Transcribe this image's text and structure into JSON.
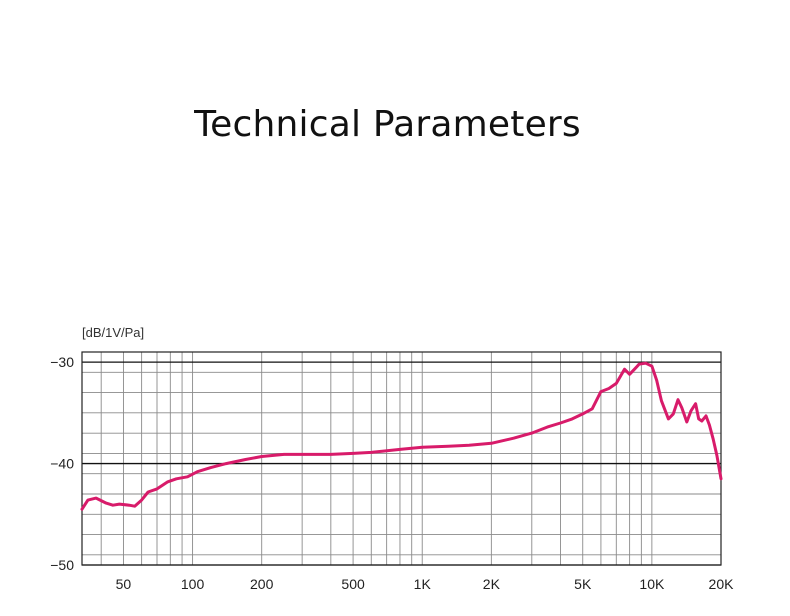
{
  "page": {
    "title": "Technical Parameters"
  },
  "chart_data": {
    "type": "line",
    "title": "",
    "ylabel": "[dB/1V/Pa]",
    "xlabel": "",
    "x_scale": "log",
    "xlim": [
      33,
      20000
    ],
    "ylim": [
      -50,
      -29
    ],
    "x_tick_labels": [
      "50",
      "100",
      "200",
      "500",
      "1K",
      "2K",
      "5K",
      "10K",
      "20K"
    ],
    "x_tick_values": [
      50,
      100,
      200,
      500,
      1000,
      2000,
      5000,
      10000,
      20000
    ],
    "y_tick_labels": [
      "−30",
      "−40",
      "−50"
    ],
    "y_tick_values": [
      -30,
      -40,
      -50
    ],
    "grid": true,
    "line_color": "#d81b6a",
    "series": [
      {
        "x": [
          33,
          35,
          38,
          42,
          45,
          48,
          53,
          56,
          60,
          64,
          70,
          78,
          85,
          95,
          105,
          120,
          140,
          170,
          200,
          250,
          300,
          400,
          500,
          600,
          800,
          1000,
          1300,
          1600,
          2000,
          2500,
          3000,
          3500,
          4000,
          4500,
          5000,
          5500,
          6000,
          6500,
          7000,
          7600,
          8000,
          8400,
          8800,
          9400,
          10000,
          10500,
          11000,
          11800,
          12400,
          13000,
          13500,
          14200,
          14800,
          15500,
          16000,
          16500,
          17200,
          17800,
          18500,
          19200,
          20000
        ],
        "y": [
          -44.5,
          -43.6,
          -43.4,
          -43.9,
          -44.1,
          -44.0,
          -44.1,
          -44.2,
          -43.6,
          -42.8,
          -42.5,
          -41.8,
          -41.5,
          -41.3,
          -40.8,
          -40.4,
          -40.0,
          -39.6,
          -39.3,
          -39.1,
          -39.1,
          -39.1,
          -39.0,
          -38.9,
          -38.6,
          -38.4,
          -38.3,
          -38.2,
          -38.0,
          -37.5,
          -37.0,
          -36.4,
          -36.0,
          -35.6,
          -35.1,
          -34.6,
          -32.9,
          -32.6,
          -32.1,
          -30.7,
          -31.2,
          -30.7,
          -30.2,
          -30.1,
          -30.4,
          -31.8,
          -33.8,
          -35.6,
          -35.1,
          -33.7,
          -34.5,
          -35.9,
          -34.8,
          -34.1,
          -35.6,
          -35.8,
          -35.3,
          -36.2,
          -37.6,
          -39.2,
          -41.5
        ]
      }
    ]
  }
}
